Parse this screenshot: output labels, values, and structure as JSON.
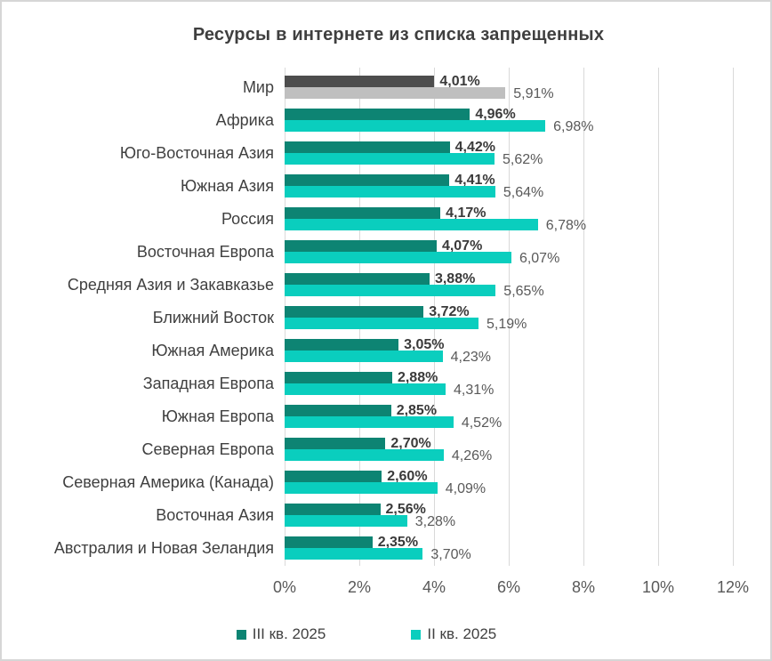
{
  "chart_data": {
    "type": "bar",
    "orientation": "horizontal",
    "title": "Ресурсы в интернете из списка запрещенных",
    "categories": [
      "Мир",
      "Африка",
      "Юго-Восточная Азия",
      "Южная Азия",
      "Россия",
      "Восточная Европа",
      "Средняя Азия и Закавказье",
      "Ближний Восток",
      "Южная Америка",
      "Западная Европа",
      "Южная Европа",
      "Северная Европа",
      "Северная Америка (Канада)",
      "Восточная Азия",
      "Австралия и Новая Зеландия"
    ],
    "series": [
      {
        "name": "III кв. 2025",
        "color": "#0d8473",
        "values": [
          4.01,
          4.96,
          4.42,
          4.41,
          4.17,
          4.07,
          3.88,
          3.72,
          3.05,
          2.88,
          2.85,
          2.7,
          2.6,
          2.56,
          2.35
        ]
      },
      {
        "name": "II кв. 2025",
        "color": "#0acebe",
        "values": [
          5.91,
          6.98,
          5.62,
          5.64,
          6.78,
          6.07,
          5.65,
          5.19,
          4.23,
          4.31,
          4.52,
          4.26,
          4.09,
          3.28,
          3.7
        ]
      }
    ],
    "color_overrides": {
      "Мир": [
        "#4d4d4d",
        "#bfbfbf"
      ]
    },
    "x_ticks": [
      0,
      2,
      4,
      6,
      8,
      10,
      12
    ],
    "x_tick_labels": [
      "0%",
      "2%",
      "4%",
      "6%",
      "8%",
      "10%",
      "12%"
    ],
    "xlim": [
      0,
      12
    ],
    "grid": "vertical",
    "legend_position": "bottom",
    "value_labels": {
      "decimal_separator": ",",
      "suffix": "%",
      "series1_style": "bold"
    }
  }
}
